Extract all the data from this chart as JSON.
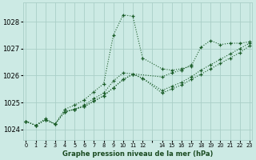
{
  "title": "Graphe pression niveau de la mer (hPa)",
  "background_color": "#cceae4",
  "grid_color": "#aacfc8",
  "line_color": "#1a5c28",
  "xlim": [
    -0.3,
    23.3
  ],
  "ylim": [
    1023.6,
    1028.7
  ],
  "yticks": [
    1024,
    1025,
    1026,
    1027,
    1028
  ],
  "figsize": [
    3.2,
    2.0
  ],
  "dpi": 100,
  "series": [
    {
      "x": [
        0,
        1,
        2,
        3,
        4,
        5,
        6,
        7,
        8,
        9,
        10,
        11,
        12,
        14,
        15,
        16,
        17,
        18,
        19,
        20,
        21,
        22,
        23
      ],
      "y": [
        1024.3,
        1024.15,
        1024.4,
        1024.2,
        1024.75,
        1024.9,
        1025.1,
        1025.4,
        1025.7,
        1027.5,
        1028.25,
        1028.2,
        1026.65,
        1026.25,
        1026.2,
        1026.25,
        1026.35,
        1027.05,
        1027.3,
        1027.15,
        1027.2,
        1027.2,
        1027.25
      ]
    },
    {
      "x": [
        4,
        5,
        6,
        7,
        8,
        9,
        10,
        14,
        15,
        16,
        17
      ],
      "y": [
        1024.65,
        1024.75,
        1024.9,
        1025.15,
        1025.35,
        1025.8,
        1026.1,
        1025.95,
        1026.1,
        1026.2,
        1026.4
      ]
    },
    {
      "x": [
        0,
        1,
        2,
        3,
        4,
        5,
        6,
        7,
        8,
        9,
        10,
        11,
        12,
        14,
        15,
        16,
        17,
        18,
        19,
        20,
        21,
        22,
        23
      ],
      "y": [
        1024.3,
        1024.15,
        1024.35,
        1024.2,
        1024.65,
        1024.75,
        1024.85,
        1025.05,
        1025.25,
        1025.55,
        1025.85,
        1026.05,
        1025.9,
        1025.35,
        1025.5,
        1025.65,
        1025.85,
        1026.05,
        1026.25,
        1026.45,
        1026.65,
        1026.85,
        1027.1
      ]
    },
    {
      "x": [
        0,
        1,
        2,
        3,
        4,
        5,
        6,
        7,
        8,
        9,
        10,
        11,
        12,
        14,
        15,
        16,
        17,
        18,
        19,
        20,
        21,
        22,
        23
      ],
      "y": [
        1024.3,
        1024.15,
        1024.35,
        1024.2,
        1024.65,
        1024.75,
        1024.85,
        1025.05,
        1025.25,
        1025.55,
        1025.85,
        1026.05,
        1025.9,
        1025.45,
        1025.6,
        1025.75,
        1025.95,
        1026.2,
        1026.4,
        1026.6,
        1026.8,
        1027.0,
        1027.2
      ]
    }
  ],
  "xtick_positions": [
    0,
    1,
    2,
    3,
    4,
    5,
    6,
    7,
    8,
    9,
    10,
    11,
    12,
    13,
    14,
    15,
    16,
    17,
    18,
    19,
    20,
    21,
    22,
    23
  ],
  "xtick_labels": [
    "0",
    "1",
    "2",
    "3",
    "4",
    "5",
    "6",
    "7",
    "8",
    "9",
    "10",
    "11",
    "12",
    "",
    "14",
    "15",
    "16",
    "17",
    "18",
    "19",
    "20",
    "21",
    "22",
    "23"
  ]
}
